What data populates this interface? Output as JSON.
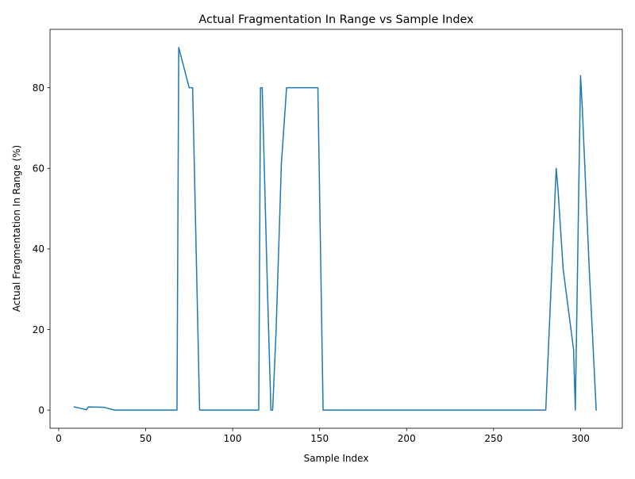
{
  "chart_data": {
    "type": "line",
    "title": "Actual Fragmentation In Range vs Sample Index",
    "xlabel": "Sample Index",
    "ylabel": "Actual Fragmentation In Range (%)",
    "xlim": [
      -5,
      324
    ],
    "ylim": [
      -4.5,
      94.5
    ],
    "xticks": [
      0,
      50,
      100,
      150,
      200,
      250,
      300
    ],
    "yticks": [
      0,
      20,
      40,
      60,
      80
    ],
    "grid": false,
    "legend": "none",
    "color": "#1f77b4",
    "series": [
      {
        "x": [
          9,
          16,
          17,
          26,
          32,
          45,
          60,
          68,
          69,
          75,
          76,
          77,
          80,
          81,
          90,
          100,
          113,
          115,
          116,
          117,
          120,
          122,
          123,
          125,
          128,
          131,
          132,
          140,
          149,
          152,
          153,
          160,
          200,
          250,
          279,
          280,
          286,
          287,
          290,
          296,
          297,
          300,
          301,
          305,
          309
        ],
        "y": [
          0.8,
          0.1,
          0.8,
          0.7,
          0.0,
          0.0,
          0.0,
          0.0,
          90,
          80,
          80,
          80,
          20,
          0.0,
          0.0,
          0.0,
          0.0,
          0.0,
          80,
          80,
          30,
          0.0,
          0.0,
          20,
          61,
          80,
          80,
          80,
          80,
          0.0,
          0.0,
          0.0,
          0.0,
          0.0,
          0.0,
          0.0,
          60,
          55,
          35,
          15,
          0.0,
          83,
          75,
          35,
          0.0
        ]
      }
    ]
  }
}
